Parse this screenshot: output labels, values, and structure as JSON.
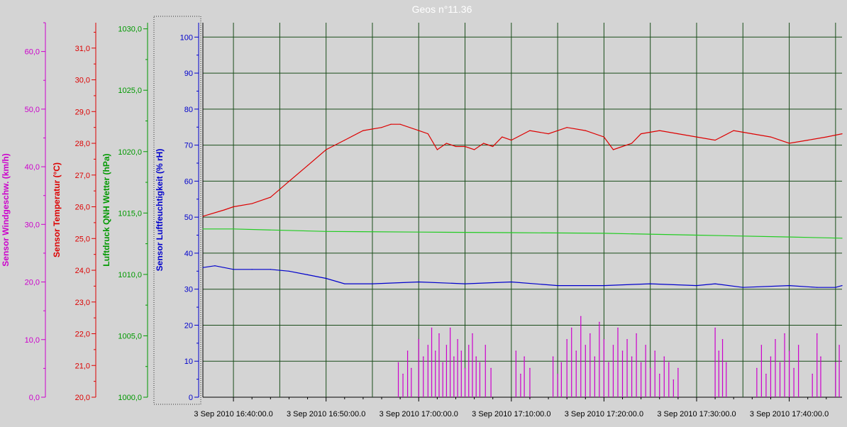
{
  "chart_data": {
    "type": "line",
    "title": "Geos n°11.36",
    "x_axis": {
      "tick_labels": [
        "3 Sep 2010 16:40:00.0",
        "3 Sep 2010 16:50:00.0",
        "3 Sep 2010 17:00:00.0",
        "3 Sep 2010 17:10:00.0",
        "3 Sep 2010 17:20:00.0",
        "3 Sep 2010 17:30:00.0",
        "3 Sep 2010 17:40:00.0"
      ],
      "range_minutes_after_1640": [
        -3.3,
        65.7
      ],
      "grid": true
    },
    "y_axes": [
      {
        "id": "wind",
        "label": "Sensor Windgeschw. (km/h)",
        "color": "#cc00cc",
        "range": [
          0,
          65
        ],
        "tick_labels": [
          "0,0",
          "10,0",
          "20,0",
          "30,0",
          "40,0",
          "50,0",
          "60,0"
        ],
        "tick_values": [
          0,
          10,
          20,
          30,
          40,
          50,
          60
        ]
      },
      {
        "id": "temp",
        "label": "Sensor Temperatur (°C)",
        "color": "#dd0000",
        "range": [
          20,
          31.8
        ],
        "tick_labels": [
          "20,0",
          "21,0",
          "22,0",
          "23,0",
          "24,0",
          "25,0",
          "26,0",
          "27,0",
          "28,0",
          "29,0",
          "30,0",
          "31,0"
        ],
        "tick_values": [
          20,
          21,
          22,
          23,
          24,
          25,
          26,
          27,
          28,
          29,
          30,
          31
        ]
      },
      {
        "id": "pressure",
        "label": "Luftdruck QNH Wetter (hPa)",
        "color": "#009900",
        "range": [
          1000,
          1030.5
        ],
        "tick_labels": [
          "1000,0",
          "1005,0",
          "1010,0",
          "1015,0",
          "1020,0",
          "1025,0",
          "1030,0"
        ],
        "tick_values": [
          1000,
          1005,
          1010,
          1015,
          1020,
          1025,
          1030
        ]
      },
      {
        "id": "humidity",
        "label": "Sensor Luftfeuchtigkeit (% rH)",
        "color": "#0000cc",
        "range": [
          0,
          104
        ],
        "tick_labels": [
          "0",
          "10",
          "20",
          "30",
          "40",
          "50",
          "60",
          "70",
          "80",
          "90",
          "100"
        ],
        "tick_values": [
          0,
          10,
          20,
          30,
          40,
          50,
          60,
          70,
          80,
          90,
          100
        ],
        "grid": true
      }
    ],
    "series": [
      {
        "name": "Sensor Temperatur (°C)",
        "axis": "temp",
        "color": "#dd0000",
        "x": [
          -3.3,
          -1,
          0,
          2,
          4,
          6,
          8,
          10,
          12,
          14,
          16,
          17,
          18,
          20,
          21,
          22,
          23,
          24,
          25,
          26,
          27,
          28,
          29,
          30,
          32,
          34,
          36,
          38,
          40,
          41,
          42,
          43,
          44,
          46,
          48,
          50,
          52,
          54,
          56,
          58,
          60,
          62,
          64,
          65.7
        ],
        "values": [
          25.7,
          25.9,
          26.0,
          26.1,
          26.3,
          26.8,
          27.3,
          27.8,
          28.1,
          28.4,
          28.5,
          28.6,
          28.6,
          28.4,
          28.3,
          27.8,
          28.0,
          27.9,
          27.9,
          27.8,
          28.0,
          27.9,
          28.2,
          28.1,
          28.4,
          28.3,
          28.5,
          28.4,
          28.2,
          27.8,
          27.9,
          28.0,
          28.3,
          28.4,
          28.3,
          28.2,
          28.1,
          28.4,
          28.3,
          28.2,
          28.0,
          28.1,
          28.2,
          28.3
        ]
      },
      {
        "name": "Luftdruck QNH Wetter (hPa)",
        "axis": "pressure",
        "color": "#22cc22",
        "x": [
          -3.3,
          0,
          10,
          20,
          30,
          40,
          50,
          60,
          65.7
        ],
        "values": [
          1013.7,
          1013.7,
          1013.5,
          1013.45,
          1013.4,
          1013.35,
          1013.2,
          1013.05,
          1012.95
        ]
      },
      {
        "name": "Sensor Luftfeuchtigkeit (% rH)",
        "axis": "humidity",
        "color": "#0000cc",
        "x": [
          -3.3,
          -2,
          0,
          2,
          4,
          6,
          8,
          10,
          12,
          15,
          20,
          25,
          30,
          35,
          40,
          45,
          50,
          52,
          55,
          60,
          63,
          65,
          65.7
        ],
        "values": [
          36,
          36.5,
          35.5,
          35.5,
          35.5,
          35,
          34,
          33,
          31.5,
          31.5,
          32,
          31.5,
          32,
          31,
          31,
          31.5,
          31,
          31.5,
          30.5,
          31,
          30.5,
          30.5,
          31
        ]
      },
      {
        "name": "Sensor Windgeschw. (km/h)",
        "axis": "wind",
        "color": "#cc00cc",
        "x": [
          17.8,
          18.3,
          18.8,
          19.2,
          20.0,
          20.5,
          21.0,
          21.4,
          21.8,
          22.2,
          22.6,
          23.0,
          23.4,
          23.8,
          24.2,
          24.6,
          25.0,
          25.4,
          25.8,
          26.2,
          26.6,
          27.2,
          27.8,
          30.5,
          31.0,
          31.4,
          32.0,
          34.5,
          35.0,
          35.4,
          36.0,
          36.5,
          37.0,
          37.5,
          38.0,
          38.5,
          39.0,
          39.5,
          40.0,
          40.5,
          41.0,
          41.5,
          42.0,
          42.5,
          43.0,
          43.5,
          44.0,
          44.5,
          45.0,
          45.5,
          46.0,
          46.5,
          47.0,
          47.5,
          48.0,
          52.0,
          52.4,
          52.8,
          53.2,
          56.5,
          57.0,
          57.5,
          58.0,
          58.5,
          59.0,
          59.5,
          60.0,
          60.5,
          61.0,
          62.5,
          63.0,
          63.4,
          65.0,
          65.4
        ],
        "values": [
          6,
          4,
          8,
          5,
          10,
          7,
          9,
          12,
          8,
          11,
          6,
          9,
          12,
          7,
          10,
          8,
          5,
          9,
          11,
          7,
          6,
          9,
          5,
          8,
          4,
          7,
          5,
          7,
          4,
          6,
          10,
          12,
          8,
          14,
          9,
          11,
          7,
          13,
          10,
          6,
          9,
          12,
          8,
          10,
          7,
          11,
          6,
          9,
          5,
          8,
          4,
          7,
          6,
          3,
          5,
          12,
          8,
          10,
          6,
          5,
          9,
          4,
          7,
          10,
          6,
          11,
          8,
          5,
          9,
          4,
          11,
          7,
          6,
          9
        ]
      }
    ]
  }
}
